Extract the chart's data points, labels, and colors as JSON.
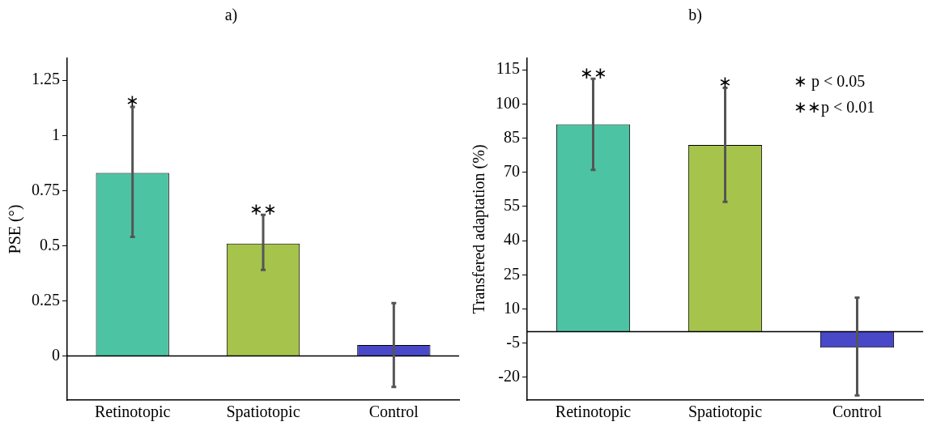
{
  "chart_data": [
    {
      "type": "bar",
      "title": "a)",
      "ylabel": "PSE (°)",
      "categories": [
        "Retinotopic",
        "Spatiotopic",
        "Control"
      ],
      "values": [
        0.83,
        0.51,
        0.05
      ],
      "colors": [
        "#4cc4a4",
        "#a6c34c",
        "#4848c8"
      ],
      "errors": [
        [
          0.54,
          1.13
        ],
        [
          0.39,
          0.64
        ],
        [
          -0.14,
          0.24
        ]
      ],
      "ylim": [
        -0.2,
        1.35
      ],
      "yticks": [
        0,
        0.25,
        0.5,
        0.75,
        1,
        1.25
      ],
      "grid": false,
      "ref_lines": [
        {
          "axis": "y",
          "value": 0,
          "color": "#000000"
        }
      ],
      "annotations": [
        {
          "text": "∗",
          "x": "Retinotopic",
          "y": 1.13
        },
        {
          "text": "∗∗",
          "x": "Spatiotopic",
          "y": 0.64
        }
      ]
    },
    {
      "type": "bar",
      "title": "b)",
      "ylabel": "Transfered adaptation (%)",
      "categories": [
        "Retinotopic",
        "Spatiotopic",
        "Control"
      ],
      "values": [
        91,
        82,
        -7
      ],
      "colors": [
        "#4cc4a4",
        "#a6c34c",
        "#4848c8"
      ],
      "errors": [
        [
          71,
          111
        ],
        [
          57,
          107
        ],
        [
          -28,
          15
        ]
      ],
      "ylim": [
        -30,
        120
      ],
      "yticks": [
        -20,
        -5,
        10,
        25,
        40,
        55,
        70,
        85,
        100,
        115
      ],
      "grid": false,
      "ref_lines": [
        {
          "axis": "y",
          "value": 0,
          "color": "#000000"
        }
      ],
      "annotations": [
        {
          "text": "∗∗",
          "x": "Retinotopic",
          "y": 111
        },
        {
          "text": "∗",
          "x": "Spatiotopic",
          "y": 107
        },
        "∗ p < 0.05",
        "∗∗p < 0.01"
      ]
    }
  ]
}
